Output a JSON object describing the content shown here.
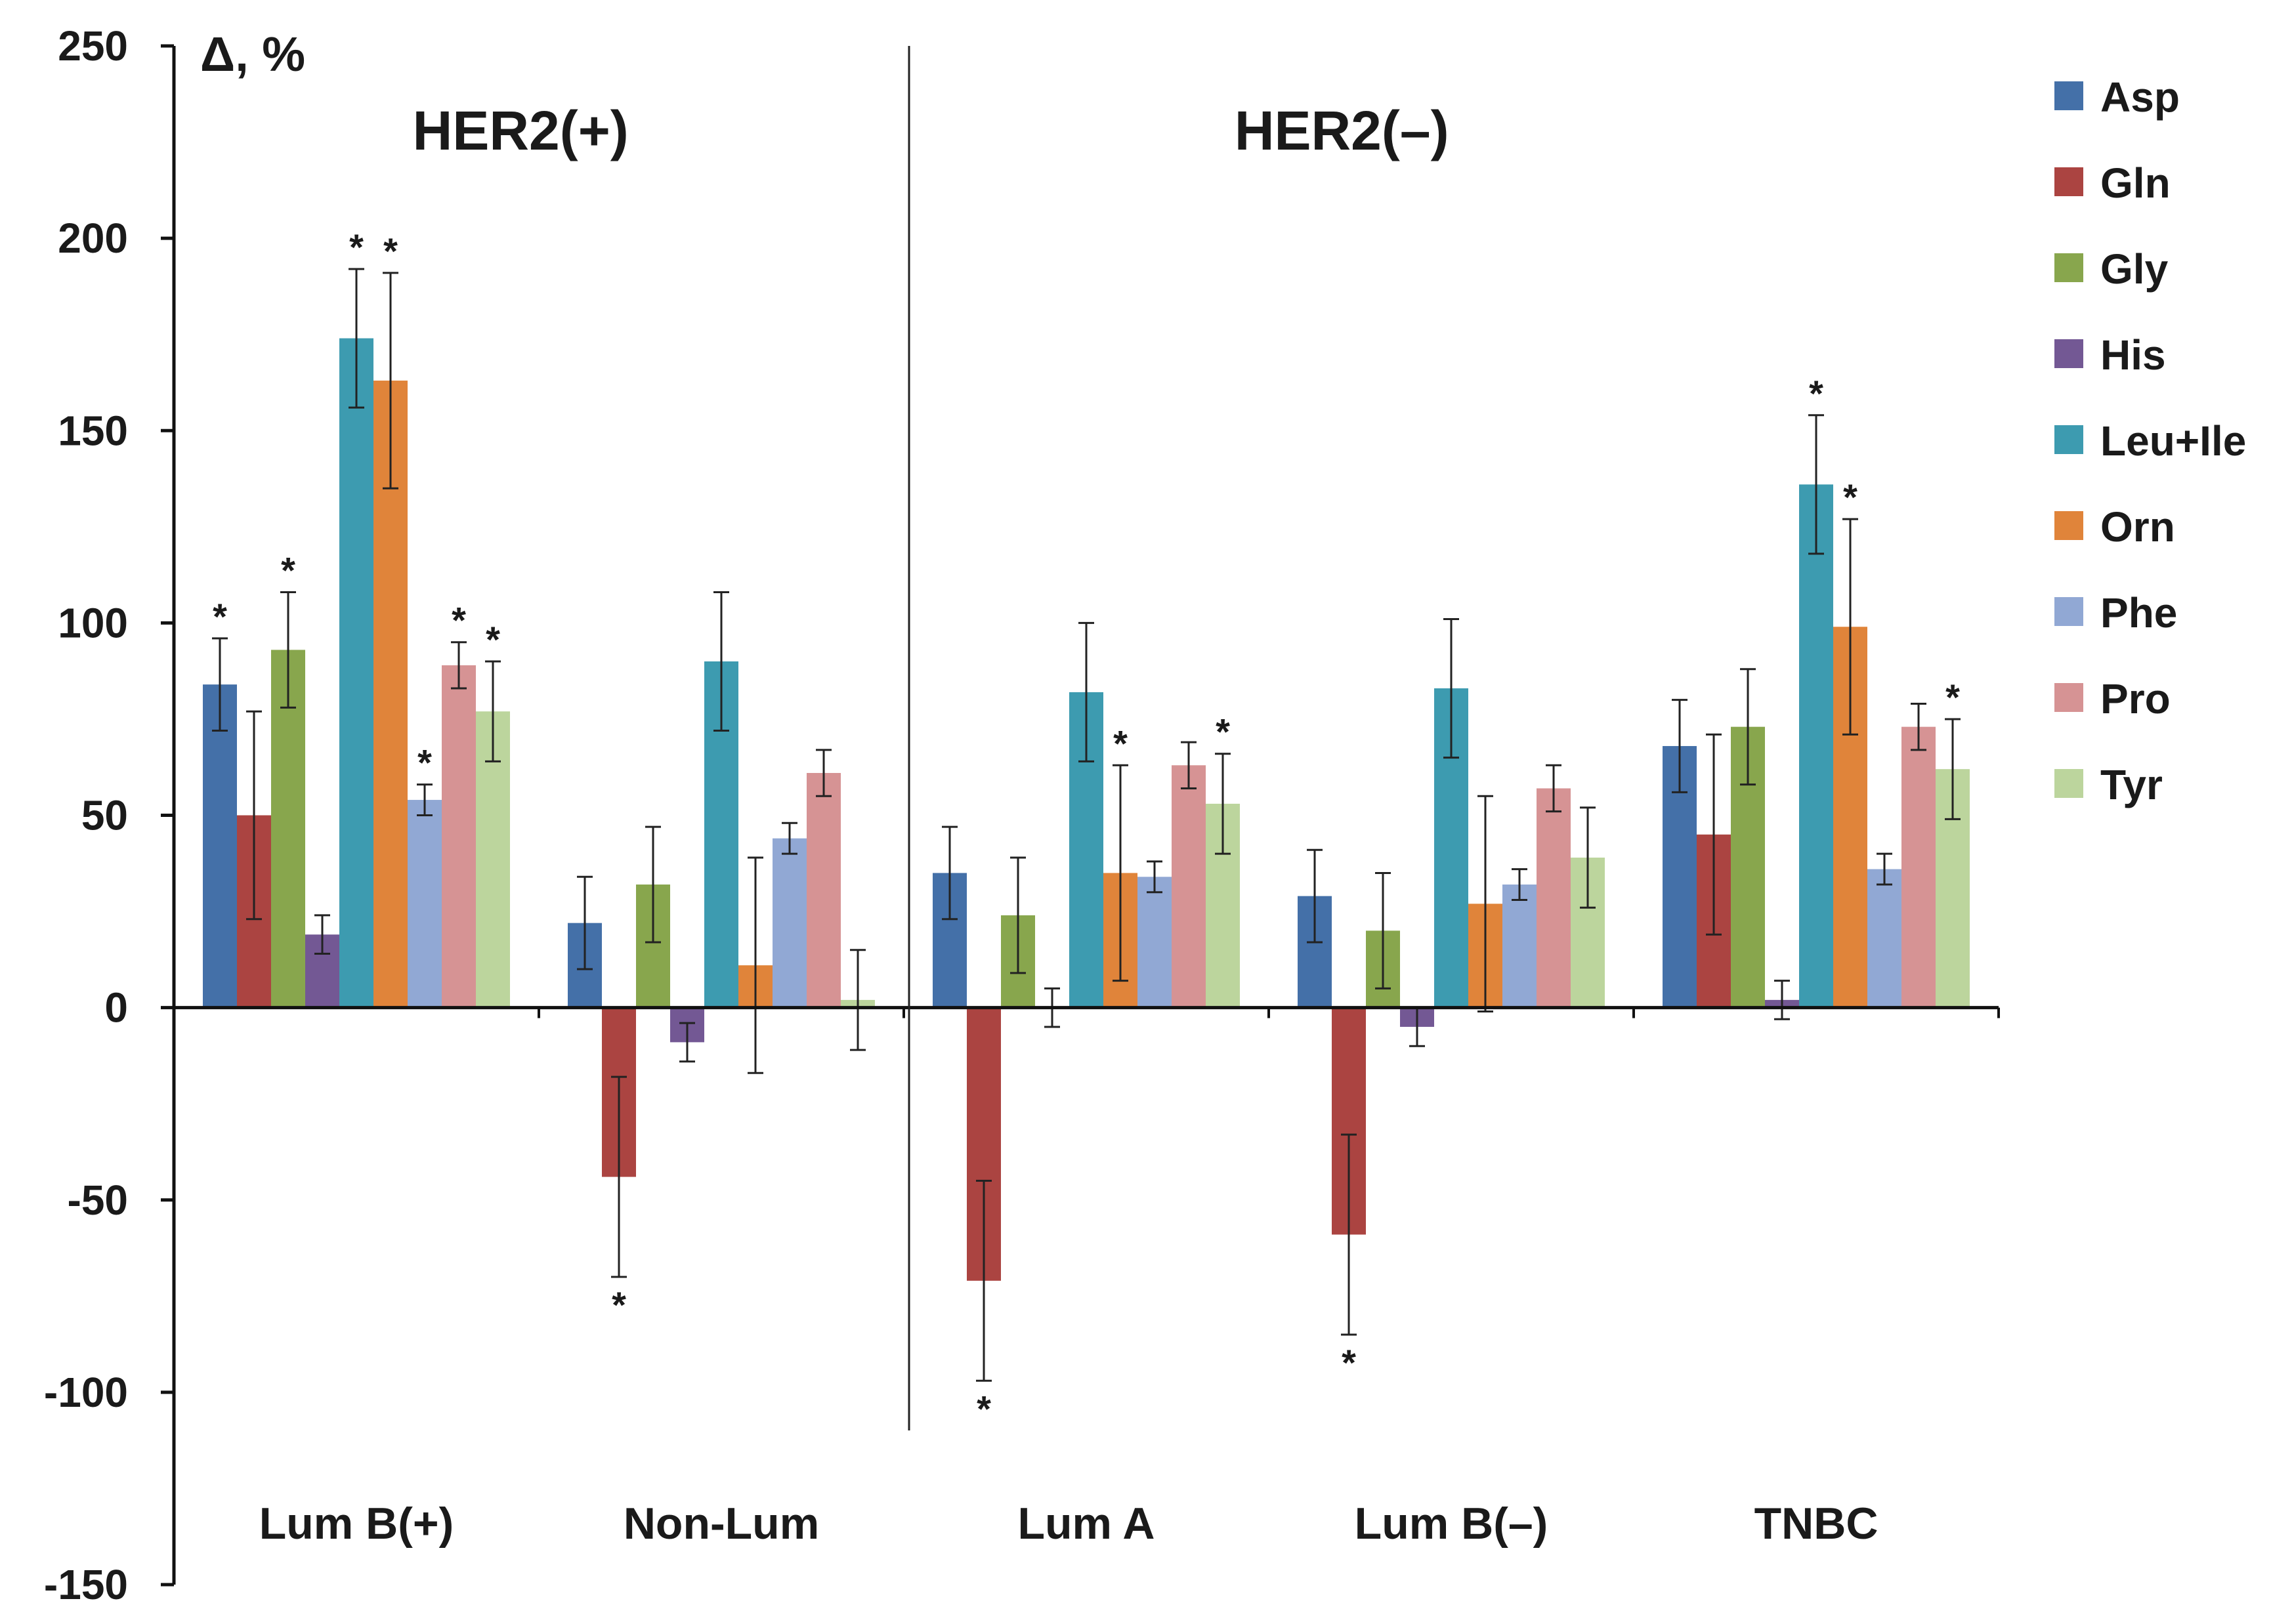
{
  "chart_data": {
    "type": "bar",
    "ylabel": "Δ, %",
    "ylim": [
      -150,
      250
    ],
    "yticks": [
      250,
      200,
      150,
      100,
      50,
      0,
      -50,
      -100,
      -150
    ],
    "ytick_labels": [
      "250",
      "200",
      "150",
      "100",
      "50",
      "0",
      "-50",
      "-100",
      "-150"
    ],
    "categories": [
      "Lum B(+)",
      "Non-Lum",
      "Lum A",
      "Lum B(–)",
      "TNBC"
    ],
    "groups": [
      {
        "label": "HER2(+)",
        "categories": [
          "Lum B(+)",
          "Non-Lum"
        ]
      },
      {
        "label": "HER2(–)",
        "categories": [
          "Lum A",
          "Lum B(–)",
          "TNBC"
        ]
      }
    ],
    "series": [
      {
        "name": "Asp",
        "color": "#4470a8",
        "values": [
          84,
          22,
          35,
          29,
          68
        ],
        "err": [
          12,
          12,
          12,
          12,
          12
        ],
        "sig": [
          true,
          false,
          false,
          false,
          false
        ]
      },
      {
        "name": "Gln",
        "color": "#ab4441",
        "values": [
          50,
          -44,
          -71,
          -59,
          45
        ],
        "err": [
          27,
          26,
          26,
          26,
          26
        ],
        "sig": [
          false,
          true,
          true,
          true,
          false
        ]
      },
      {
        "name": "Gly",
        "color": "#88a64d",
        "values": [
          93,
          32,
          24,
          20,
          73
        ],
        "err": [
          15,
          15,
          15,
          15,
          15
        ],
        "sig": [
          true,
          false,
          false,
          false,
          false
        ]
      },
      {
        "name": "His",
        "color": "#735894",
        "values": [
          19,
          -9,
          0,
          -5,
          2
        ],
        "err": [
          5,
          5,
          5,
          5,
          5
        ],
        "sig": [
          false,
          false,
          false,
          false,
          false
        ]
      },
      {
        "name": "Leu+Ile",
        "color": "#3d9bb0",
        "values": [
          174,
          90,
          82,
          83,
          136
        ],
        "err": [
          18,
          18,
          18,
          18,
          18
        ],
        "sig": [
          true,
          false,
          false,
          false,
          true
        ]
      },
      {
        "name": "Orn",
        "color": "#e0843a",
        "values": [
          163,
          11,
          35,
          27,
          99
        ],
        "err": [
          28,
          28,
          28,
          28,
          28
        ],
        "sig": [
          true,
          false,
          true,
          false,
          true
        ]
      },
      {
        "name": "Phe",
        "color": "#91a8d4",
        "values": [
          54,
          44,
          34,
          32,
          36
        ],
        "err": [
          4,
          4,
          4,
          4,
          4
        ],
        "sig": [
          true,
          false,
          false,
          false,
          false
        ]
      },
      {
        "name": "Pro",
        "color": "#d69394",
        "values": [
          89,
          61,
          63,
          57,
          73
        ],
        "err": [
          6,
          6,
          6,
          6,
          6
        ],
        "sig": [
          true,
          false,
          false,
          false,
          false
        ]
      },
      {
        "name": "Tyr",
        "color": "#bcd59d",
        "values": [
          77,
          2,
          53,
          39,
          62
        ],
        "err": [
          13,
          13,
          13,
          13,
          13
        ],
        "sig": [
          true,
          false,
          true,
          false,
          true
        ]
      }
    ],
    "significance_marker": "*",
    "legend_position": "right"
  }
}
